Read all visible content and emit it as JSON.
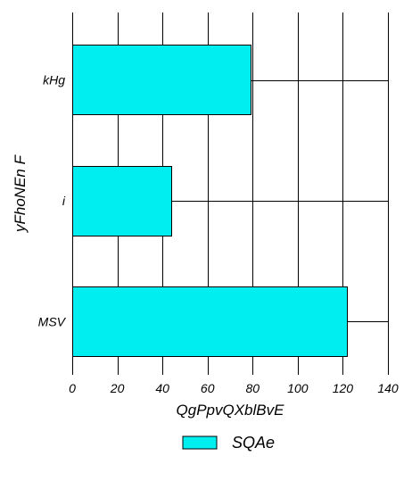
{
  "chart_data": {
    "type": "bar",
    "orientation": "horizontal",
    "categories": [
      "kHg",
      "i",
      "MSV"
    ],
    "series": [
      {
        "name": "SQAe",
        "values": [
          79,
          44,
          122
        ],
        "color": "#00eef0"
      }
    ],
    "xlabel": "QgPpvQXblBvE",
    "ylabel": "yFhoNEn F",
    "xlim": [
      0,
      140
    ],
    "xticks": [
      0,
      20,
      40,
      60,
      80,
      100,
      120,
      140
    ],
    "grid": true,
    "legend": "bottom"
  }
}
